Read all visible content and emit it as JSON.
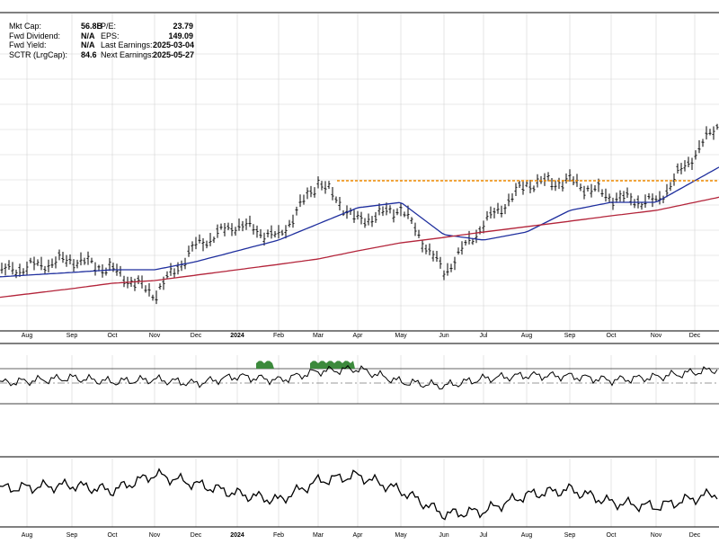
{
  "info": {
    "left": [
      {
        "label": "Mkt Cap:",
        "value": "56.8B"
      },
      {
        "label": "Fwd Dividend:",
        "value": "N/A"
      },
      {
        "label": "Fwd Yield:",
        "value": "N/A"
      },
      {
        "label": "SCTR (LrgCap):",
        "value": "84.6"
      }
    ],
    "right": [
      {
        "label": "P/E:",
        "value": "23.79"
      },
      {
        "label": "EPS:",
        "value": "149.09"
      },
      {
        "label": "Last Earnings:",
        "value": "2025-03-04"
      },
      {
        "label": "Next Earnings:",
        "value": "2025-05-27"
      }
    ]
  },
  "colors": {
    "price": "#000000",
    "ma_short": "#1f2f9e",
    "ma_long": "#b3243a",
    "resistance": "#f08a00",
    "rsi_fill": "#3c8a3c",
    "grid": "#d4d4d4"
  },
  "chart_data": [
    {
      "type": "line",
      "panel": "price",
      "x_tick_labels": [
        "Aug",
        "Sep",
        "Oct",
        "Nov",
        "Dec",
        "2024",
        "Feb",
        "Mar",
        "Apr",
        "May",
        "Jun",
        "Jul",
        "Aug",
        "Sep",
        "Oct",
        "Nov",
        "Dec"
      ],
      "x": [
        "2023-08",
        "2023-09",
        "2023-10",
        "2023-11",
        "2023-12",
        "2024-01",
        "2024-02",
        "2024-03",
        "2024-04",
        "2024-05",
        "2024-06",
        "2024-07",
        "2024-08",
        "2024-09",
        "2024-10",
        "2024-11",
        "2024-12"
      ],
      "series": [
        {
          "style": "ohlc-bars",
          "values": [
            46,
            49,
            45,
            36,
            54,
            62,
            57,
            78,
            63,
            68,
            44,
            62,
            77,
            78,
            72,
            70,
            88
          ]
        },
        {
          "style": "moving-average-short",
          "values": [
            43,
            44,
            45,
            45,
            48,
            52,
            56,
            62,
            68,
            70,
            58,
            56,
            59,
            67,
            70,
            70,
            78
          ]
        },
        {
          "style": "moving-average-long",
          "values": [
            36,
            38,
            40,
            41,
            43,
            45,
            47,
            49,
            52,
            55,
            57,
            59,
            61,
            63,
            65,
            67,
            70
          ]
        },
        {
          "style": "horizontal-resistance",
          "values": [
            78,
            78,
            78,
            78,
            78,
            78,
            78,
            78,
            78,
            78,
            78,
            78,
            78,
            78,
            78,
            78,
            78
          ]
        }
      ],
      "grid": true
    },
    {
      "type": "line",
      "panel": "momentum-oscillator",
      "x_tick_labels": [],
      "values": [
        48,
        52,
        47,
        50,
        45,
        54,
        49,
        60,
        63,
        47,
        42,
        51,
        55,
        54,
        49,
        53,
        59
      ],
      "reference_lines": [
        30,
        50,
        70
      ],
      "grid": true
    },
    {
      "type": "line",
      "panel": "lower-indicator",
      "x_tick_labels": [
        "Aug",
        "Sep",
        "Oct",
        "Nov",
        "Dec",
        "2024",
        "Feb",
        "Mar",
        "Apr",
        "May",
        "Jun",
        "Jul",
        "Aug",
        "Sep",
        "Oct",
        "Nov",
        "Dec"
      ],
      "values": [
        50,
        52,
        47,
        62,
        53,
        44,
        38,
        56,
        61,
        47,
        25,
        28,
        43,
        48,
        36,
        32,
        40
      ],
      "grid": true
    }
  ]
}
